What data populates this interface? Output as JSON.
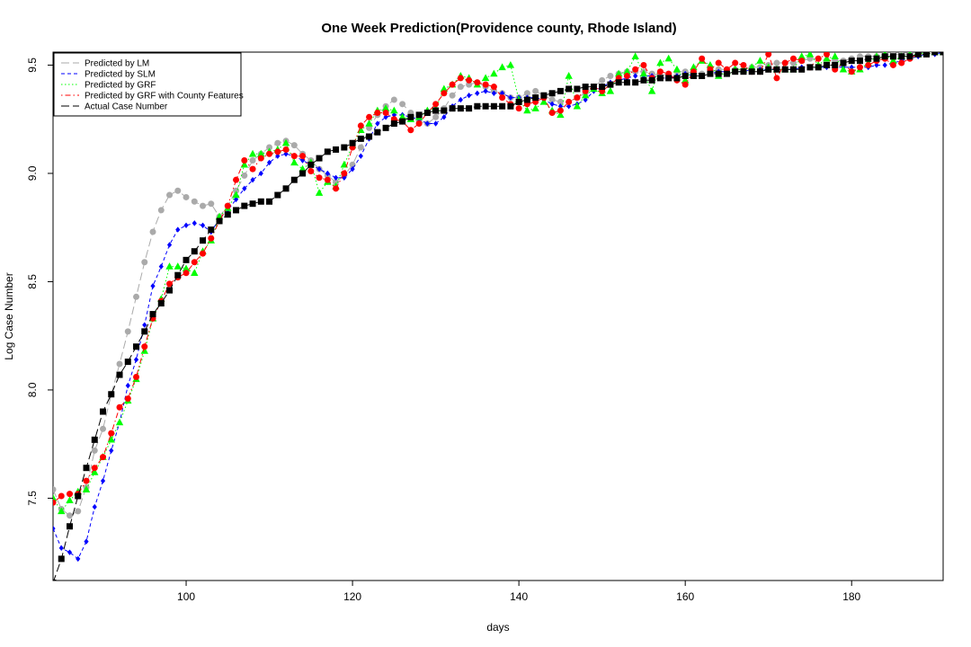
{
  "chart_data": {
    "type": "line",
    "title": "One Week Prediction(Providence county, Rhode Island)",
    "xlabel": "days",
    "ylabel": "Log Case Number",
    "xlim": [
      84,
      191
    ],
    "ylim": [
      7.12,
      9.56
    ],
    "x_ticks": [
      100,
      120,
      140,
      160,
      180
    ],
    "y_ticks": [
      7.5,
      8.0,
      8.5,
      9.0,
      9.5
    ],
    "x_tick_labels": [
      "100",
      "120",
      "140",
      "160",
      "180"
    ],
    "y_tick_labels": [
      "7.5",
      "8.0",
      "8.5",
      "9.0",
      "9.5"
    ],
    "grid": false,
    "legend_position": "top-left",
    "legend_labels": [
      "Predicted by LM",
      "Predicted by SLM",
      "Predicted by GRF",
      "Predicted by GRF with County Features",
      "Actual Case Number"
    ],
    "x": [
      84,
      85,
      86,
      87,
      88,
      89,
      90,
      91,
      92,
      93,
      94,
      95,
      96,
      97,
      98,
      99,
      100,
      101,
      102,
      103,
      104,
      105,
      106,
      107,
      108,
      109,
      110,
      111,
      112,
      113,
      114,
      115,
      116,
      117,
      118,
      119,
      120,
      121,
      122,
      123,
      124,
      125,
      126,
      127,
      128,
      129,
      130,
      131,
      132,
      133,
      134,
      135,
      136,
      137,
      138,
      139,
      140,
      141,
      142,
      143,
      144,
      145,
      146,
      147,
      148,
      149,
      150,
      151,
      152,
      153,
      154,
      155,
      156,
      157,
      158,
      159,
      160,
      161,
      162,
      163,
      164,
      165,
      166,
      167,
      168,
      169,
      170,
      171,
      172,
      173,
      174,
      175,
      176,
      177,
      178,
      179,
      180,
      181,
      182,
      183,
      184,
      185,
      186,
      187,
      188,
      189,
      190,
      191
    ],
    "series": [
      {
        "name": "Predicted by LM",
        "color": "#aaaaaa",
        "marker": "circle",
        "line": "longdash",
        "values": [
          7.54,
          7.45,
          7.42,
          7.44,
          7.55,
          7.72,
          7.82,
          7.98,
          8.12,
          8.27,
          8.43,
          8.59,
          8.73,
          8.83,
          8.9,
          8.92,
          8.89,
          8.87,
          8.85,
          8.86,
          8.8,
          8.85,
          8.92,
          8.99,
          9.06,
          9.09,
          9.12,
          9.14,
          9.15,
          9.13,
          9.09,
          9.06,
          9.02,
          8.99,
          8.96,
          8.99,
          9.04,
          9.12,
          9.21,
          9.27,
          9.31,
          9.34,
          9.32,
          9.28,
          9.24,
          9.23,
          9.26,
          9.3,
          9.36,
          9.4,
          9.41,
          9.42,
          9.4,
          9.38,
          9.37,
          9.35,
          9.35,
          9.37,
          9.38,
          9.36,
          9.34,
          9.33,
          9.33,
          9.35,
          9.37,
          9.4,
          9.43,
          9.45,
          9.46,
          9.47,
          9.47,
          9.47,
          9.46,
          9.45,
          9.46,
          9.47,
          9.47,
          9.46,
          9.46,
          9.47,
          9.48,
          9.48,
          9.48,
          9.48,
          9.49,
          9.49,
          9.5,
          9.51,
          9.51,
          9.51,
          9.52,
          9.53,
          9.53,
          9.52,
          9.52,
          9.52,
          9.53,
          9.54,
          9.54,
          9.54,
          9.55,
          9.55,
          9.55,
          9.55,
          9.55,
          9.56,
          9.56,
          9.56
        ]
      },
      {
        "name": "Predicted by SLM",
        "color": "#0000ff",
        "marker": "diamond",
        "line": "dashed",
        "values": [
          7.36,
          7.27,
          7.25,
          7.22,
          7.3,
          7.46,
          7.58,
          7.72,
          7.85,
          8.02,
          8.14,
          8.3,
          8.48,
          8.57,
          8.67,
          8.74,
          8.76,
          8.77,
          8.76,
          8.73,
          8.79,
          8.83,
          8.88,
          8.93,
          8.97,
          9.0,
          9.05,
          9.08,
          9.09,
          9.08,
          9.06,
          9.04,
          9.02,
          9.0,
          8.98,
          8.98,
          9.02,
          9.08,
          9.16,
          9.23,
          9.26,
          9.27,
          9.27,
          9.26,
          9.25,
          9.23,
          9.23,
          9.26,
          9.31,
          9.34,
          9.36,
          9.37,
          9.38,
          9.37,
          9.37,
          9.35,
          9.35,
          9.35,
          9.35,
          9.34,
          9.32,
          9.31,
          9.31,
          9.32,
          9.34,
          9.38,
          9.4,
          9.42,
          9.43,
          9.44,
          9.45,
          9.45,
          9.45,
          9.44,
          9.44,
          9.45,
          9.46,
          9.45,
          9.45,
          9.46,
          9.47,
          9.47,
          9.47,
          9.47,
          9.48,
          9.48,
          9.48,
          9.48,
          9.48,
          9.48,
          9.49,
          9.49,
          9.49,
          9.49,
          9.49,
          9.49,
          9.49,
          9.49,
          9.49,
          9.5,
          9.5,
          9.51,
          9.52,
          9.53,
          9.54,
          9.55,
          9.55,
          9.56
        ]
      },
      {
        "name": "Predicted by GRF",
        "color": "#00ff00",
        "marker": "triangle",
        "line": "dotted",
        "values": [
          7.5,
          7.44,
          7.49,
          7.53,
          7.54,
          7.62,
          7.69,
          7.77,
          7.85,
          7.95,
          8.05,
          8.18,
          8.33,
          8.42,
          8.57,
          8.57,
          8.56,
          8.54,
          8.64,
          8.69,
          8.8,
          8.84,
          8.9,
          9.04,
          9.09,
          9.09,
          9.1,
          9.11,
          9.14,
          9.05,
          9.02,
          9.05,
          8.91,
          8.96,
          8.94,
          9.04,
          9.13,
          9.2,
          9.23,
          9.29,
          9.3,
          9.29,
          9.26,
          9.25,
          9.26,
          9.29,
          9.3,
          9.39,
          9.41,
          9.45,
          9.44,
          9.41,
          9.44,
          9.46,
          9.49,
          9.5,
          9.34,
          9.29,
          9.3,
          9.33,
          9.29,
          9.27,
          9.45,
          9.31,
          9.36,
          9.39,
          9.37,
          9.38,
          9.46,
          9.47,
          9.54,
          9.46,
          9.38,
          9.51,
          9.53,
          9.48,
          9.43,
          9.49,
          9.52,
          9.5,
          9.45,
          9.47,
          9.48,
          9.48,
          9.49,
          9.52,
          9.49,
          9.48,
          9.48,
          9.48,
          9.54,
          9.55,
          9.5,
          9.53,
          9.54,
          9.48,
          9.47,
          9.48,
          9.51,
          9.54,
          9.55,
          9.52,
          9.54,
          9.55,
          9.55,
          9.56,
          9.56,
          9.56
        ]
      },
      {
        "name": "Predicted by GRF with County Features",
        "color": "#ff0000",
        "marker": "circle",
        "line": "dotdash",
        "values": [
          7.48,
          7.51,
          7.52,
          7.52,
          7.58,
          7.64,
          7.69,
          7.8,
          7.92,
          7.96,
          8.06,
          8.2,
          8.33,
          8.41,
          8.49,
          8.52,
          8.54,
          8.59,
          8.63,
          8.7,
          8.78,
          8.85,
          8.97,
          9.06,
          9.02,
          9.07,
          9.09,
          9.1,
          9.11,
          9.08,
          9.08,
          9.01,
          8.98,
          8.97,
          8.93,
          9.0,
          9.12,
          9.22,
          9.26,
          9.28,
          9.28,
          9.25,
          9.24,
          9.2,
          9.23,
          9.28,
          9.32,
          9.37,
          9.41,
          9.44,
          9.43,
          9.42,
          9.41,
          9.4,
          9.35,
          9.32,
          9.3,
          9.32,
          9.33,
          9.35,
          9.28,
          9.29,
          9.33,
          9.35,
          9.38,
          9.4,
          9.38,
          9.41,
          9.44,
          9.45,
          9.48,
          9.5,
          9.44,
          9.47,
          9.46,
          9.43,
          9.41,
          9.47,
          9.53,
          9.48,
          9.51,
          9.48,
          9.51,
          9.5,
          9.47,
          9.47,
          9.55,
          9.44,
          9.51,
          9.53,
          9.52,
          9.49,
          9.53,
          9.55,
          9.48,
          9.51,
          9.47,
          9.49,
          9.5,
          9.52,
          9.53,
          9.5,
          9.51,
          9.53,
          9.55,
          9.55,
          9.56,
          9.56
        ]
      },
      {
        "name": "Actual Case Number",
        "color": "#000000",
        "marker": "square",
        "line": "longdash",
        "values": [
          7.11,
          7.22,
          7.37,
          7.51,
          7.64,
          7.77,
          7.9,
          7.98,
          8.07,
          8.13,
          8.2,
          8.27,
          8.35,
          8.4,
          8.46,
          8.53,
          8.6,
          8.64,
          8.69,
          8.74,
          8.78,
          8.81,
          8.83,
          8.85,
          8.86,
          8.87,
          8.87,
          8.9,
          8.93,
          8.97,
          9.0,
          9.04,
          9.07,
          9.1,
          9.11,
          9.12,
          9.14,
          9.16,
          9.17,
          9.19,
          9.21,
          9.23,
          9.24,
          9.26,
          9.27,
          9.28,
          9.29,
          9.29,
          9.3,
          9.3,
          9.3,
          9.31,
          9.31,
          9.31,
          9.31,
          9.31,
          9.33,
          9.34,
          9.35,
          9.36,
          9.37,
          9.38,
          9.39,
          9.39,
          9.4,
          9.4,
          9.4,
          9.41,
          9.42,
          9.42,
          9.42,
          9.43,
          9.43,
          9.44,
          9.44,
          9.44,
          9.45,
          9.45,
          9.45,
          9.46,
          9.46,
          9.46,
          9.47,
          9.47,
          9.47,
          9.47,
          9.48,
          9.48,
          9.48,
          9.48,
          9.48,
          9.49,
          9.49,
          9.5,
          9.5,
          9.51,
          9.52,
          9.52,
          9.53,
          9.53,
          9.54,
          9.54,
          9.54,
          9.54,
          9.55,
          9.55,
          9.56,
          9.56
        ]
      }
    ]
  }
}
